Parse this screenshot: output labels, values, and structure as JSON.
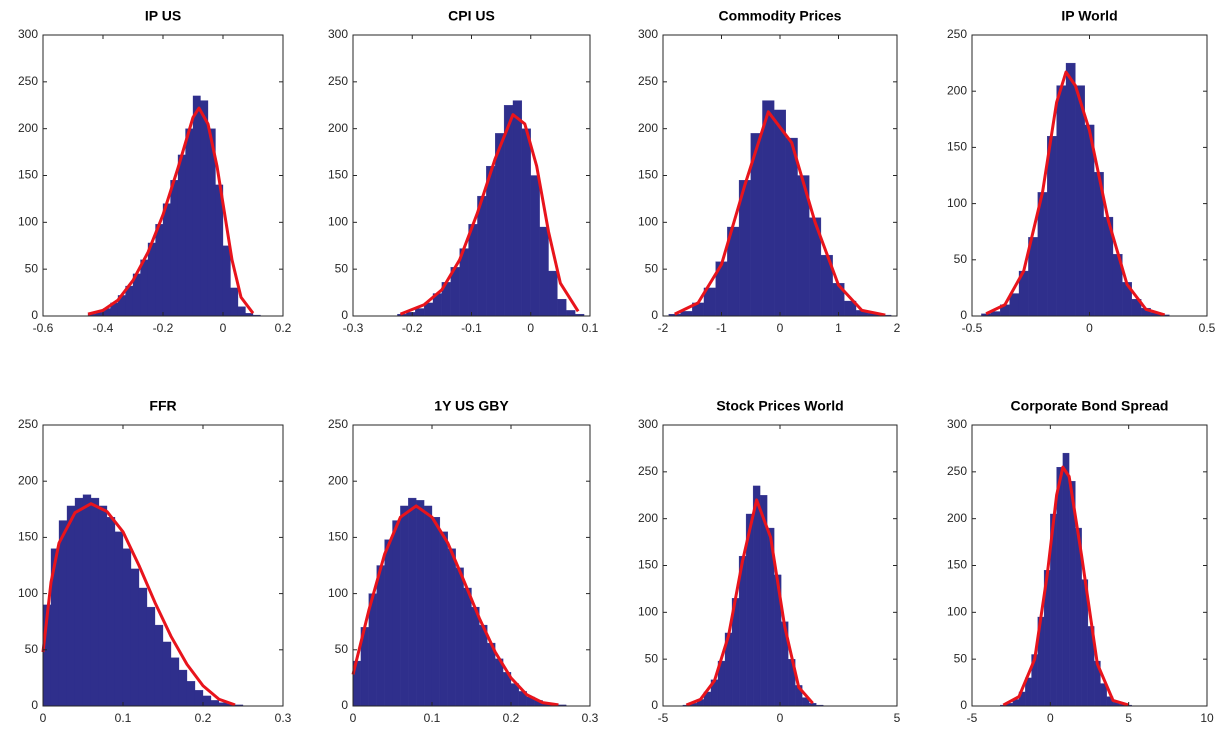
{
  "chart_data": [
    {
      "type": "histogram",
      "title": "IP US",
      "color": "#2f2f8c",
      "bins": [
        -0.45,
        -0.425,
        -0.4,
        -0.375,
        -0.35,
        -0.325,
        -0.3,
        -0.275,
        -0.25,
        -0.225,
        -0.2,
        -0.175,
        -0.15,
        -0.125,
        -0.1,
        -0.075,
        -0.05,
        -0.025,
        0,
        0.025,
        0.05,
        0.075,
        0.1,
        0.125
      ],
      "counts": [
        2,
        4,
        8,
        14,
        22,
        32,
        45,
        60,
        78,
        98,
        120,
        145,
        172,
        200,
        235,
        230,
        200,
        140,
        75,
        30,
        10,
        3,
        1
      ],
      "curve": {
        "color": "#e8141c",
        "x": [
          -0.45,
          -0.4,
          -0.35,
          -0.3,
          -0.25,
          -0.2,
          -0.15,
          -0.1,
          -0.08,
          -0.05,
          -0.02,
          0,
          0.03,
          0.06,
          0.1
        ],
        "values": [
          2,
          6,
          17,
          38,
          68,
          108,
          158,
          212,
          222,
          205,
          160,
          120,
          60,
          20,
          3
        ]
      },
      "xlim": [
        -0.6,
        0.2
      ],
      "xticks": [
        -0.6,
        -0.4,
        -0.2,
        0,
        0.2
      ],
      "ylim": [
        0,
        300
      ],
      "yticks": [
        0,
        50,
        100,
        150,
        200,
        250,
        300
      ]
    },
    {
      "type": "histogram",
      "title": "CPI US",
      "color": "#2f2f8c",
      "bins": [
        -0.225,
        -0.21,
        -0.195,
        -0.18,
        -0.165,
        -0.15,
        -0.135,
        -0.12,
        -0.105,
        -0.09,
        -0.075,
        -0.06,
        -0.045,
        -0.03,
        -0.015,
        0,
        0.015,
        0.03,
        0.045,
        0.06,
        0.075,
        0.09
      ],
      "counts": [
        2,
        4,
        8,
        14,
        24,
        36,
        52,
        72,
        98,
        128,
        160,
        195,
        225,
        230,
        200,
        150,
        95,
        48,
        18,
        6,
        2
      ],
      "curve": {
        "color": "#e8141c",
        "x": [
          -0.22,
          -0.18,
          -0.15,
          -0.12,
          -0.09,
          -0.06,
          -0.03,
          -0.01,
          0.01,
          0.03,
          0.05,
          0.08
        ],
        "values": [
          2,
          12,
          28,
          60,
          110,
          168,
          215,
          205,
          160,
          90,
          35,
          5
        ]
      },
      "xlim": [
        -0.3,
        0.1
      ],
      "xticks": [
        -0.3,
        -0.2,
        -0.1,
        0,
        0.1
      ],
      "ylim": [
        0,
        300
      ],
      "yticks": [
        0,
        50,
        100,
        150,
        200,
        250,
        300
      ]
    },
    {
      "type": "histogram",
      "title": "Commodity Prices",
      "color": "#2f2f8c",
      "bins": [
        -1.9,
        -1.7,
        -1.5,
        -1.3,
        -1.1,
        -0.9,
        -0.7,
        -0.5,
        -0.3,
        -0.1,
        0.1,
        0.3,
        0.5,
        0.7,
        0.9,
        1.1,
        1.3,
        1.5,
        1.7,
        1.9
      ],
      "counts": [
        2,
        5,
        14,
        30,
        58,
        95,
        145,
        195,
        230,
        220,
        190,
        150,
        105,
        65,
        35,
        16,
        6,
        3,
        1
      ],
      "curve": {
        "color": "#e8141c",
        "x": [
          -1.8,
          -1.4,
          -1,
          -0.6,
          -0.2,
          0.2,
          0.6,
          1,
          1.4,
          1.8
        ],
        "values": [
          2,
          14,
          55,
          140,
          218,
          185,
          100,
          33,
          6,
          1
        ]
      },
      "xlim": [
        -2,
        2
      ],
      "xticks": [
        -2,
        -1,
        0,
        1,
        2
      ],
      "ylim": [
        0,
        300
      ],
      "yticks": [
        0,
        50,
        100,
        150,
        200,
        250,
        300
      ]
    },
    {
      "type": "histogram",
      "title": "IP World",
      "color": "#2f2f8c",
      "bins": [
        -0.46,
        -0.42,
        -0.38,
        -0.34,
        -0.3,
        -0.26,
        -0.22,
        -0.18,
        -0.14,
        -0.1,
        -0.06,
        -0.02,
        0.02,
        0.06,
        0.1,
        0.14,
        0.18,
        0.22,
        0.26,
        0.3,
        0.34
      ],
      "counts": [
        2,
        4,
        10,
        20,
        40,
        70,
        110,
        160,
        205,
        225,
        205,
        170,
        128,
        88,
        55,
        30,
        15,
        7,
        3,
        1
      ],
      "curve": {
        "color": "#e8141c",
        "x": [
          -0.44,
          -0.36,
          -0.28,
          -0.2,
          -0.14,
          -0.1,
          -0.06,
          0,
          0.08,
          0.16,
          0.24,
          0.32
        ],
        "values": [
          2,
          10,
          40,
          110,
          190,
          217,
          205,
          165,
          85,
          28,
          6,
          1
        ]
      },
      "xlim": [
        -0.5,
        0.5
      ],
      "xticks": [
        -0.5,
        0,
        0.5
      ],
      "ylim": [
        0,
        250
      ],
      "yticks": [
        0,
        50,
        100,
        150,
        200,
        250
      ]
    },
    {
      "type": "histogram",
      "title": "FFR",
      "color": "#2f2f8c",
      "bins": [
        0,
        0.01,
        0.02,
        0.03,
        0.04,
        0.05,
        0.06,
        0.07,
        0.08,
        0.09,
        0.1,
        0.11,
        0.12,
        0.13,
        0.14,
        0.15,
        0.16,
        0.17,
        0.18,
        0.19,
        0.2,
        0.21,
        0.22,
        0.23,
        0.24,
        0.25
      ],
      "counts": [
        90,
        140,
        165,
        178,
        185,
        188,
        185,
        178,
        168,
        155,
        140,
        122,
        105,
        88,
        72,
        57,
        43,
        32,
        22,
        14,
        9,
        5,
        3,
        2,
        1
      ],
      "curve": {
        "color": "#e8141c",
        "x": [
          0,
          0.01,
          0.02,
          0.04,
          0.06,
          0.08,
          0.1,
          0.12,
          0.14,
          0.16,
          0.18,
          0.2,
          0.22,
          0.24
        ],
        "values": [
          48,
          110,
          145,
          172,
          180,
          173,
          155,
          125,
          92,
          62,
          37,
          18,
          6,
          1
        ]
      },
      "xlim": [
        0,
        0.3
      ],
      "xticks": [
        0,
        0.1,
        0.2,
        0.3
      ],
      "ylim": [
        0,
        250
      ],
      "yticks": [
        0,
        50,
        100,
        150,
        200,
        250
      ]
    },
    {
      "type": "histogram",
      "title": "1Y US GBY",
      "color": "#2f2f8c",
      "bins": [
        0,
        0.01,
        0.02,
        0.03,
        0.04,
        0.05,
        0.06,
        0.07,
        0.08,
        0.09,
        0.1,
        0.11,
        0.12,
        0.13,
        0.14,
        0.15,
        0.16,
        0.17,
        0.18,
        0.19,
        0.2,
        0.21,
        0.22,
        0.23,
        0.24,
        0.25,
        0.26,
        0.27
      ],
      "counts": [
        40,
        70,
        100,
        125,
        148,
        165,
        178,
        185,
        183,
        178,
        168,
        155,
        140,
        123,
        105,
        88,
        72,
        56,
        42,
        30,
        20,
        13,
        8,
        5,
        3,
        2,
        1
      ],
      "curve": {
        "color": "#e8141c",
        "x": [
          0,
          0.02,
          0.04,
          0.06,
          0.08,
          0.1,
          0.12,
          0.14,
          0.16,
          0.18,
          0.2,
          0.22,
          0.24,
          0.26
        ],
        "values": [
          28,
          85,
          135,
          168,
          178,
          168,
          145,
          112,
          78,
          48,
          25,
          10,
          3,
          1
        ]
      },
      "xlim": [
        0,
        0.3
      ],
      "xticks": [
        0,
        0.1,
        0.2,
        0.3
      ],
      "ylim": [
        0,
        250
      ],
      "yticks": [
        0,
        50,
        100,
        150,
        200,
        250
      ]
    },
    {
      "type": "histogram",
      "title": "Stock Prices World",
      "color": "#2f2f8c",
      "bins": [
        -4.15,
        -3.85,
        -3.55,
        -3.25,
        -2.95,
        -2.65,
        -2.35,
        -2.05,
        -1.75,
        -1.45,
        -1.15,
        -0.85,
        -0.55,
        -0.25,
        0.05,
        0.35,
        0.65,
        0.95,
        1.25,
        1.55,
        1.85
      ],
      "counts": [
        1,
        3,
        7,
        15,
        28,
        48,
        78,
        115,
        160,
        205,
        235,
        225,
        190,
        140,
        90,
        50,
        22,
        9,
        3,
        1
      ],
      "curve": {
        "color": "#e8141c",
        "x": [
          -4,
          -3.4,
          -2.8,
          -2.2,
          -1.6,
          -1,
          -0.4,
          0.2,
          0.8,
          1.4
        ],
        "values": [
          1,
          7,
          27,
          75,
          155,
          220,
          180,
          85,
          20,
          3
        ]
      },
      "xlim": [
        -5,
        5
      ],
      "xticks": [
        -5,
        0,
        5
      ],
      "ylim": [
        0,
        300
      ],
      "yticks": [
        0,
        50,
        100,
        150,
        200,
        250,
        300
      ]
    },
    {
      "type": "histogram",
      "title": "Corporate Bond Spread",
      "color": "#2f2f8c",
      "bins": [
        -3.2,
        -2.8,
        -2.4,
        -2,
        -1.6,
        -1.2,
        -0.8,
        -0.4,
        0,
        0.4,
        0.8,
        1.2,
        1.6,
        2,
        2.4,
        2.8,
        3.2,
        3.6,
        4,
        4.4,
        4.8,
        5.2
      ],
      "counts": [
        1,
        3,
        7,
        15,
        30,
        55,
        95,
        145,
        205,
        255,
        270,
        240,
        190,
        135,
        85,
        48,
        24,
        10,
        4,
        2,
        1
      ],
      "curve": {
        "color": "#e8141c",
        "x": [
          -3,
          -2,
          -1,
          -0.2,
          0.4,
          0.8,
          1.2,
          2,
          3,
          4,
          5
        ],
        "values": [
          1,
          10,
          50,
          140,
          225,
          255,
          245,
          160,
          45,
          6,
          1
        ]
      },
      "xlim": [
        -5,
        10
      ],
      "xticks": [
        -5,
        0,
        5,
        10
      ],
      "ylim": [
        0,
        300
      ],
      "yticks": [
        0,
        50,
        100,
        150,
        200,
        250,
        300
      ]
    }
  ]
}
